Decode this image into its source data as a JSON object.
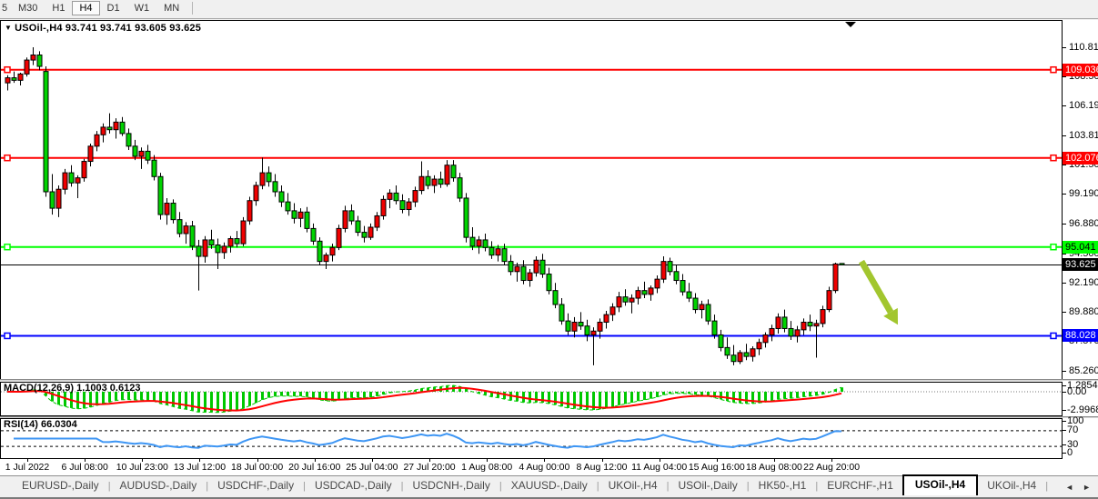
{
  "toolbar": {
    "timeframes": [
      "5",
      "M30",
      "H1",
      "H4",
      "D1",
      "W1",
      "MN"
    ],
    "active_timeframe": "H4"
  },
  "chart_title": {
    "symbol": "USOil-,H4",
    "ohlc": "93.741 93.741 93.605 93.625"
  },
  "price_axis": {
    "ticks": [
      "110.810",
      "108.500",
      "106.190",
      "103.810",
      "101.500",
      "99.190",
      "96.880",
      "94.500",
      "92.190",
      "89.880",
      "87.570",
      "85.260"
    ]
  },
  "time_axis": {
    "labels": [
      "1 Jul 2022",
      "6 Jul 08:00",
      "10 Jul 23:00",
      "13 Jul 12:00",
      "18 Jul 00:00",
      "20 Jul 16:00",
      "25 Jul 04:00",
      "27 Jul 20:00",
      "1 Aug 08:00",
      "4 Aug 00:00",
      "8 Aug 12:00",
      "11 Aug 04:00",
      "15 Aug 16:00",
      "18 Aug 08:00",
      "22 Aug 20:00"
    ]
  },
  "macd": {
    "name": "MACD(12,26,9)",
    "values": "1.1003 0.6123",
    "axis": [
      "1.2854",
      "0.00",
      "-2.9968"
    ]
  },
  "rsi": {
    "name": "RSI(14)",
    "value": "66.0304",
    "axis": [
      "100",
      "70",
      "30",
      "0"
    ],
    "levels": [
      70,
      30
    ]
  },
  "tabs": {
    "items": [
      "EURUSD-,Daily",
      "AUDUSD-,Daily",
      "USDCHF-,Daily",
      "USDCAD-,Daily",
      "USDCNH-,Daily",
      "XAUUSD-,Daily",
      "UKOil-,H4",
      "USOil-,Daily",
      "HK50-,H1",
      "EURCHF-,H1",
      "USOil-,H4",
      "UKOil-,H4"
    ],
    "active": "USOil-,H4",
    "scroll_left": "◄",
    "scroll_right": "►"
  },
  "colors": {
    "candle_up": "#f00000",
    "candle_down": "#00d300",
    "wick": "#000000",
    "level_red": "#ff0000",
    "level_green": "#00ff00",
    "level_blue": "#0000ff",
    "price_line": "#000000",
    "macd_hist": "#00c800",
    "macd_line_dash": "#00c800",
    "macd_signal": "#ff0000",
    "rsi_line": "#3e96f4",
    "arrow": "#a2c62e"
  },
  "chart_data": {
    "type": "candlestick",
    "title": "USOil-,H4",
    "y_axis_range": [
      85.26,
      110.81
    ],
    "levels": [
      {
        "price": 109.036,
        "label": "109.036",
        "color": "#ff0000",
        "text_color": "#ffffff"
      },
      {
        "price": 102.076,
        "label": "102.076",
        "color": "#ff0000",
        "text_color": "#ffffff"
      },
      {
        "price": 95.041,
        "label": "95.041",
        "color": "#00ff00",
        "text_color": "#000000"
      },
      {
        "price": 88.028,
        "label": "88.028",
        "color": "#0000ff",
        "text_color": "#ffffff"
      }
    ],
    "current_price": {
      "price": 93.625,
      "label": "93.625",
      "color": "#000000",
      "text_color": "#ffffff"
    },
    "ohlc": [
      [
        108.0,
        108.6,
        107.4,
        108.4
      ],
      [
        108.4,
        108.9,
        108.0,
        108.2
      ],
      [
        108.2,
        108.8,
        107.8,
        108.7
      ],
      [
        108.7,
        110.0,
        108.5,
        109.8
      ],
      [
        109.8,
        110.81,
        109.4,
        110.2
      ],
      [
        110.2,
        110.5,
        109.0,
        109.3
      ],
      [
        108.9,
        109.3,
        99.0,
        99.4
      ],
      [
        99.4,
        100.8,
        97.6,
        98.1
      ],
      [
        98.1,
        99.9,
        97.4,
        99.6
      ],
      [
        99.6,
        101.2,
        99.2,
        100.9
      ],
      [
        100.9,
        101.5,
        99.8,
        100.1
      ],
      [
        100.1,
        100.7,
        98.9,
        100.5
      ],
      [
        100.5,
        102.0,
        100.2,
        101.8
      ],
      [
        101.8,
        103.2,
        101.4,
        103.0
      ],
      [
        103.0,
        104.2,
        102.6,
        103.9
      ],
      [
        103.9,
        104.8,
        103.3,
        104.5
      ],
      [
        104.5,
        105.6,
        104.0,
        104.3
      ],
      [
        104.3,
        105.2,
        103.6,
        104.9
      ],
      [
        104.9,
        105.3,
        103.8,
        104.0
      ],
      [
        104.0,
        104.4,
        102.7,
        103.0
      ],
      [
        103.0,
        103.5,
        101.9,
        102.2
      ],
      [
        102.2,
        102.9,
        101.2,
        102.6
      ],
      [
        102.6,
        103.1,
        101.6,
        101.9
      ],
      [
        101.9,
        102.3,
        100.3,
        100.6
      ],
      [
        100.6,
        100.9,
        97.2,
        97.6
      ],
      [
        97.6,
        98.9,
        96.8,
        98.5
      ],
      [
        98.5,
        98.8,
        96.9,
        97.2
      ],
      [
        97.2,
        97.8,
        95.8,
        96.1
      ],
      [
        96.1,
        97.0,
        95.3,
        96.7
      ],
      [
        96.7,
        97.1,
        94.8,
        95.1
      ],
      [
        95.1,
        95.6,
        91.6,
        94.3
      ],
      [
        94.3,
        95.9,
        93.8,
        95.6
      ],
      [
        95.6,
        96.4,
        94.9,
        95.2
      ],
      [
        95.2,
        95.7,
        93.3,
        94.6
      ],
      [
        94.6,
        95.4,
        94.1,
        95.1
      ],
      [
        95.1,
        95.9,
        94.6,
        95.7
      ],
      [
        95.7,
        96.3,
        95.0,
        95.3
      ],
      [
        95.3,
        97.4,
        95.1,
        97.1
      ],
      [
        97.1,
        99.0,
        96.8,
        98.7
      ],
      [
        98.7,
        100.2,
        98.3,
        99.9
      ],
      [
        99.9,
        102.1,
        99.6,
        100.9
      ],
      [
        100.9,
        101.4,
        99.8,
        100.2
      ],
      [
        100.2,
        100.8,
        99.0,
        99.4
      ],
      [
        99.4,
        99.9,
        98.2,
        98.6
      ],
      [
        98.6,
        99.3,
        97.6,
        97.9
      ],
      [
        97.9,
        98.5,
        96.9,
        97.3
      ],
      [
        97.3,
        98.1,
        96.6,
        97.8
      ],
      [
        97.8,
        98.2,
        96.2,
        96.5
      ],
      [
        96.5,
        96.9,
        95.2,
        95.5
      ],
      [
        95.5,
        95.8,
        93.6,
        93.9
      ],
      [
        93.9,
        94.6,
        93.3,
        94.4
      ],
      [
        94.4,
        95.3,
        93.9,
        95.0
      ],
      [
        95.0,
        96.8,
        94.8,
        96.5
      ],
      [
        96.5,
        98.3,
        96.2,
        97.9
      ],
      [
        97.9,
        98.4,
        96.8,
        97.1
      ],
      [
        97.1,
        97.5,
        95.9,
        96.2
      ],
      [
        96.2,
        96.7,
        95.4,
        95.8
      ],
      [
        95.8,
        96.9,
        95.6,
        96.6
      ],
      [
        96.6,
        97.8,
        96.3,
        97.5
      ],
      [
        97.5,
        99.1,
        97.2,
        98.8
      ],
      [
        98.8,
        99.6,
        98.1,
        99.3
      ],
      [
        99.3,
        99.9,
        98.4,
        98.7
      ],
      [
        98.7,
        99.2,
        97.7,
        98.0
      ],
      [
        98.0,
        98.9,
        97.5,
        98.6
      ],
      [
        98.6,
        99.8,
        98.2,
        99.5
      ],
      [
        99.5,
        101.8,
        99.2,
        100.6
      ],
      [
        100.6,
        101.1,
        99.6,
        99.9
      ],
      [
        99.9,
        100.7,
        99.3,
        100.4
      ],
      [
        100.4,
        101.0,
        99.7,
        100.0
      ],
      [
        100.0,
        101.9,
        99.8,
        101.5
      ],
      [
        101.5,
        101.9,
        100.2,
        100.5
      ],
      [
        100.5,
        100.9,
        98.6,
        98.9
      ],
      [
        98.9,
        99.3,
        95.4,
        95.8
      ],
      [
        95.8,
        96.6,
        94.8,
        95.1
      ],
      [
        95.1,
        95.9,
        94.5,
        95.6
      ],
      [
        95.6,
        96.1,
        94.7,
        95.0
      ],
      [
        95.0,
        95.5,
        94.1,
        94.4
      ],
      [
        94.4,
        95.2,
        93.9,
        94.9
      ],
      [
        94.9,
        95.3,
        93.6,
        93.9
      ],
      [
        93.9,
        94.4,
        92.8,
        93.1
      ],
      [
        93.1,
        93.8,
        92.3,
        93.5
      ],
      [
        93.5,
        94.0,
        92.1,
        92.4
      ],
      [
        92.4,
        93.3,
        91.9,
        93.0
      ],
      [
        93.0,
        94.3,
        92.7,
        94.0
      ],
      [
        94.0,
        94.5,
        92.6,
        92.9
      ],
      [
        92.9,
        93.4,
        91.3,
        91.6
      ],
      [
        91.6,
        92.2,
        90.2,
        90.5
      ],
      [
        90.5,
        91.0,
        88.9,
        89.2
      ],
      [
        89.2,
        89.8,
        88.1,
        88.4
      ],
      [
        88.4,
        89.5,
        87.9,
        89.1
      ],
      [
        89.1,
        89.9,
        88.5,
        88.8
      ],
      [
        88.8,
        89.3,
        87.6,
        88.1
      ],
      [
        88.1,
        88.7,
        85.7,
        88.4
      ],
      [
        88.4,
        89.4,
        87.8,
        89.1
      ],
      [
        89.1,
        90.0,
        88.6,
        89.7
      ],
      [
        89.7,
        90.6,
        89.2,
        90.3
      ],
      [
        90.3,
        91.5,
        89.9,
        91.1
      ],
      [
        91.1,
        91.7,
        90.4,
        90.7
      ],
      [
        90.7,
        91.3,
        89.8,
        91.0
      ],
      [
        91.0,
        91.9,
        90.5,
        91.6
      ],
      [
        91.6,
        92.3,
        91.0,
        91.3
      ],
      [
        91.3,
        92.0,
        90.8,
        91.8
      ],
      [
        91.8,
        92.8,
        91.4,
        92.5
      ],
      [
        92.5,
        94.3,
        92.2,
        93.9
      ],
      [
        93.9,
        94.2,
        92.8,
        93.1
      ],
      [
        93.1,
        93.6,
        92.1,
        92.4
      ],
      [
        92.4,
        92.9,
        91.2,
        91.5
      ],
      [
        91.5,
        92.2,
        90.7,
        91.0
      ],
      [
        91.0,
        91.4,
        89.8,
        90.1
      ],
      [
        90.1,
        90.8,
        89.4,
        90.5
      ],
      [
        90.5,
        90.9,
        88.9,
        89.2
      ],
      [
        89.2,
        89.7,
        87.8,
        88.1
      ],
      [
        88.1,
        88.5,
        86.8,
        87.1
      ],
      [
        87.1,
        87.9,
        86.2,
        86.5
      ],
      [
        86.5,
        87.3,
        85.7,
        86.0
      ],
      [
        86.0,
        86.9,
        85.8,
        86.7
      ],
      [
        86.7,
        87.4,
        86.1,
        86.4
      ],
      [
        86.4,
        87.2,
        86.0,
        87.0
      ],
      [
        87.0,
        87.8,
        86.5,
        87.5
      ],
      [
        87.5,
        88.3,
        87.1,
        88.1
      ],
      [
        88.1,
        88.9,
        87.6,
        88.6
      ],
      [
        88.6,
        89.8,
        88.2,
        89.5
      ],
      [
        89.5,
        90.1,
        88.3,
        88.6
      ],
      [
        88.6,
        89.2,
        87.7,
        88.0
      ],
      [
        88.0,
        88.8,
        87.5,
        88.5
      ],
      [
        88.5,
        89.4,
        88.1,
        89.1
      ],
      [
        89.1,
        89.7,
        88.4,
        88.8
      ],
      [
        88.8,
        89.3,
        86.3,
        89.0
      ],
      [
        89.0,
        90.4,
        88.7,
        90.1
      ],
      [
        90.1,
        91.9,
        89.9,
        91.6
      ],
      [
        91.6,
        93.8,
        91.4,
        93.7
      ],
      [
        93.74,
        93.74,
        93.6,
        93.63
      ]
    ],
    "annotation_arrow": {
      "from_price_x": 947,
      "from_price": 93.9,
      "to_price_x": 987,
      "to_price": 88.9
    }
  }
}
